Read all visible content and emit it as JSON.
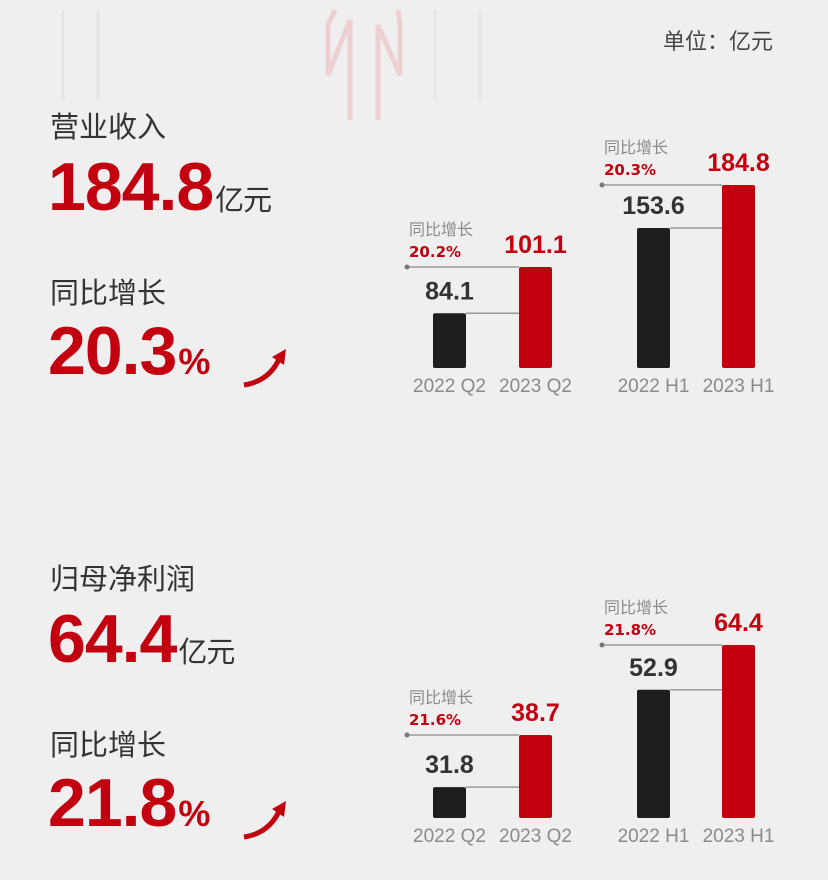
{
  "unit_label": "单位：亿元",
  "sections": [
    {
      "metric": "营业收入",
      "value": "184.8",
      "value_unit": "亿元",
      "growth_label": "同比增长",
      "growth_value": "20.3",
      "growth_unit": "%"
    },
    {
      "metric": "归母净利润",
      "value": "64.4",
      "value_unit": "亿元",
      "growth_label": "同比增长",
      "growth_value": "21.8",
      "growth_unit": "%"
    }
  ],
  "colors": {
    "accent": "#c2000f",
    "dark": "#1e1e1e",
    "label_gray": "#8a8a8a",
    "text": "#333333"
  },
  "chart_data": [
    {
      "type": "bar",
      "categories": [
        "2022 Q2",
        "2023 Q2"
      ],
      "values": [
        84.1,
        101.1
      ],
      "labels": [
        "84.1",
        "101.1"
      ],
      "annotation_title": "同比增长",
      "annotation_value": "20.2%",
      "ylim": [
        64,
        101.1
      ],
      "colors": [
        "#1e1e1e",
        "#c2000f"
      ]
    },
    {
      "type": "bar",
      "categories": [
        "2022 H1",
        "2023 H1"
      ],
      "values": [
        153.6,
        184.8
      ],
      "labels": [
        "153.6",
        "184.8"
      ],
      "annotation_title": "同比增长",
      "annotation_value": "20.3%",
      "ylim": [
        52,
        184.8
      ],
      "colors": [
        "#1e1e1e",
        "#c2000f"
      ]
    },
    {
      "type": "bar",
      "categories": [
        "2022 Q2",
        "2023 Q2"
      ],
      "values": [
        31.8,
        38.7
      ],
      "labels": [
        "31.8",
        "38.7"
      ],
      "annotation_title": "同比增长",
      "annotation_value": "21.6%",
      "ylim": [
        27.7,
        38.7
      ],
      "colors": [
        "#1e1e1e",
        "#c2000f"
      ]
    },
    {
      "type": "bar",
      "categories": [
        "2022 H1",
        "2023 H1"
      ],
      "values": [
        52.9,
        64.4
      ],
      "labels": [
        "52.9",
        "64.4"
      ],
      "annotation_title": "同比增长",
      "annotation_value": "21.8%",
      "ylim": [
        20,
        64.4
      ],
      "colors": [
        "#1e1e1e",
        "#c2000f"
      ]
    }
  ]
}
